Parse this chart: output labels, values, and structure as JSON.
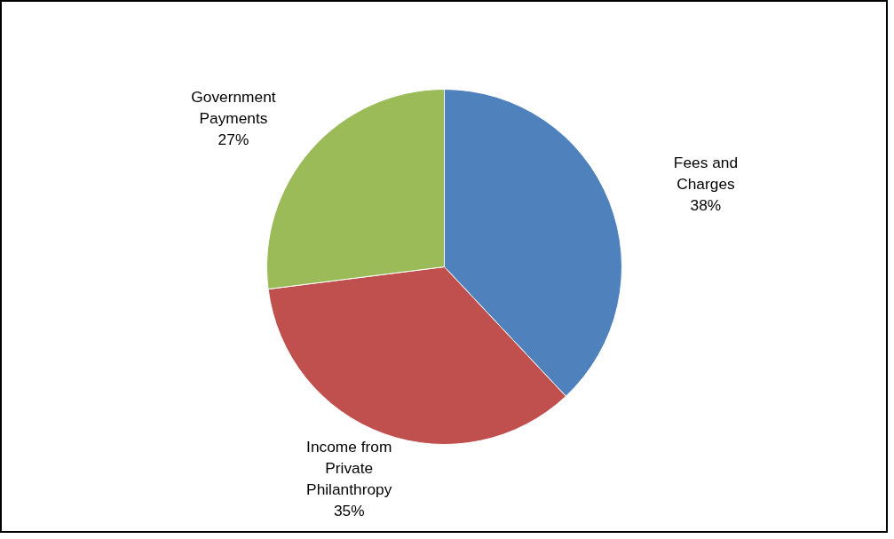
{
  "chart_data": {
    "type": "pie",
    "categories": [
      "Fees and Charges",
      "Income from Private Philanthropy",
      "Government Payments"
    ],
    "values": [
      38,
      35,
      27
    ],
    "colors": [
      "#4f81bd",
      "#c0504d",
      "#9bbb59"
    ],
    "value_labels": [
      "38%",
      "35%",
      "27%"
    ]
  }
}
